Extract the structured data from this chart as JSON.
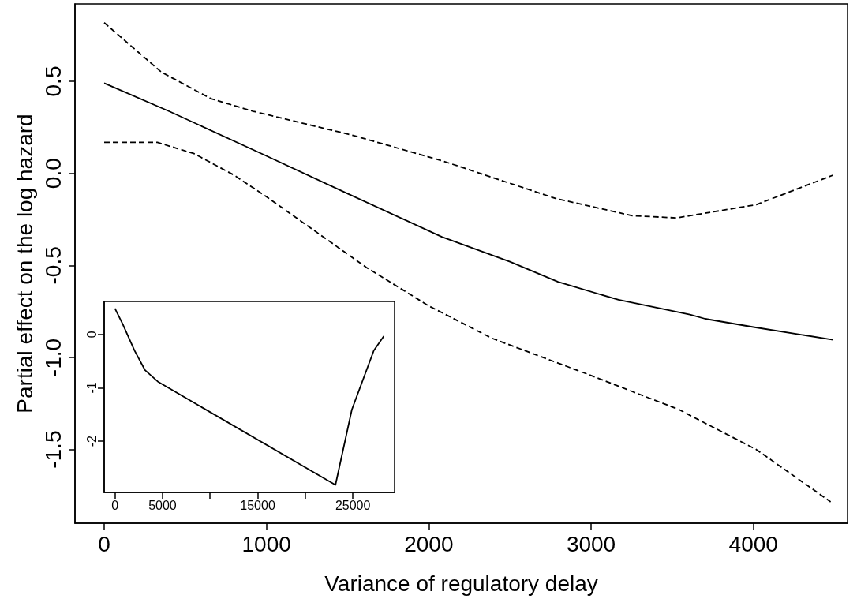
{
  "chart_data": [
    {
      "type": "line",
      "xlabel": "Variance of regulatory delay",
      "ylabel": "Partial effect on the log hazard",
      "xlim": [
        -180,
        4580
      ],
      "xticks": [
        0,
        1000,
        2000,
        3000,
        4000
      ],
      "ylim": [
        -1.9,
        0.92
      ],
      "yticks": [
        {
          "value": -1.5,
          "label": "-1.5"
        },
        {
          "value": -1,
          "label": "-1.0"
        },
        {
          "value": -0.5,
          "label": "-0.5"
        },
        {
          "value": 0,
          "label": "0.0"
        },
        {
          "value": 0.5,
          "label": "0.5"
        }
      ],
      "grid": false,
      "marker": "none",
      "series": [
        {
          "color": "#000000",
          "line_style": "solid",
          "x": [
            0,
            400,
            970,
            1500,
            2080,
            2500,
            2796,
            3169,
            3609,
            3703,
            4000,
            4491
          ],
          "values": [
            0.49,
            0.337,
            0.107,
            -0.11,
            -0.345,
            -0.48,
            -0.589,
            -0.687,
            -0.767,
            -0.79,
            -0.835,
            -0.904
          ]
        },
        {
          "color": "#000000",
          "line_style": "dashed",
          "x": [
            0,
            352,
            659,
            919,
            1526,
            2080,
            2780,
            3254,
            3527,
            4018,
            4490
          ],
          "values": [
            0.818,
            0.55,
            0.405,
            0.337,
            0.208,
            0.069,
            -0.136,
            -0.23,
            -0.242,
            -0.17,
            -0.01
          ]
        },
        {
          "color": "#000000",
          "line_style": "dashed",
          "x": [
            0,
            328,
            554,
            797,
            1005,
            1614,
            2000,
            2390,
            3000,
            3541,
            4018,
            4476
          ],
          "values": [
            0.168,
            0.168,
            0.107,
            -0.008,
            -0.13,
            -0.51,
            -0.72,
            -0.896,
            -1.098,
            -1.283,
            -1.5,
            -1.784
          ]
        }
      ]
    },
    {
      "type": "line",
      "xlim": [
        -1130,
        29380
      ],
      "xticks": [
        0,
        5000,
        {
          "value": 10000,
          "label": null
        },
        15000,
        {
          "value": 20000,
          "label": null
        },
        25000
      ],
      "ylim": [
        -2.96,
        0.62
      ],
      "yticks": [
        -2,
        -1,
        0
      ],
      "grid": false,
      "marker": "none",
      "series": [
        {
          "color": "#000000",
          "line_style": "solid",
          "x": [
            0,
            805,
            2055,
            3170,
            4560,
            23170,
            24890,
            27200,
            28250
          ],
          "values": [
            0.49,
            0.2,
            -0.3,
            -0.67,
            -0.89,
            -2.82,
            -1.41,
            -0.3,
            -0.03
          ]
        }
      ]
    }
  ]
}
